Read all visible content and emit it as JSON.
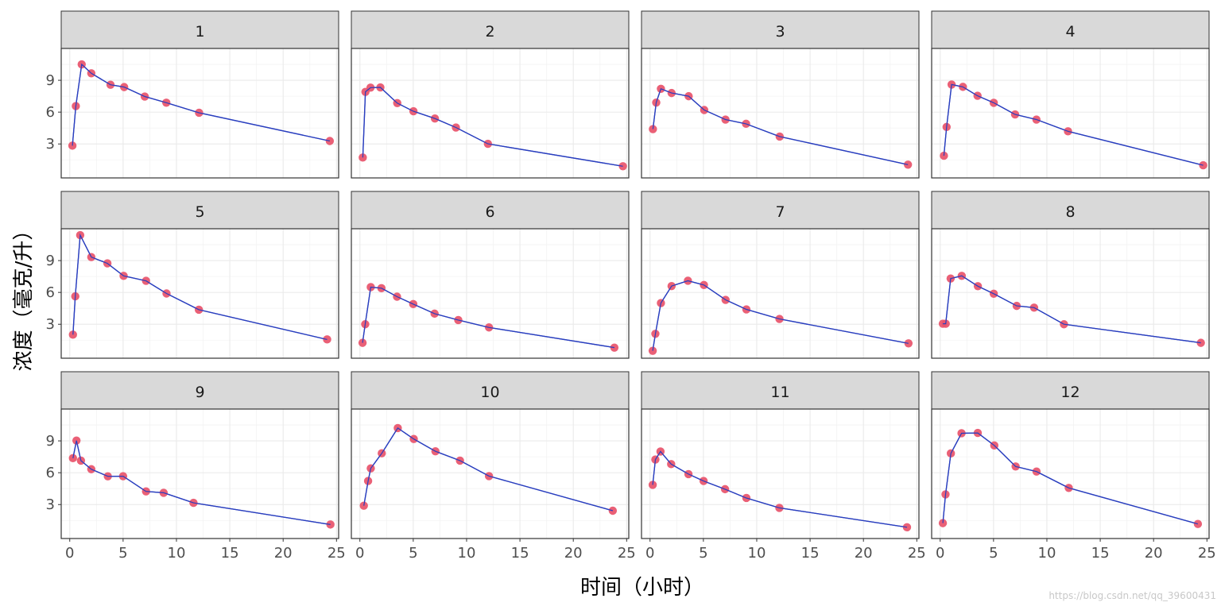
{
  "chart_data": {
    "type": "line",
    "facet_layout": "3 rows x 4 columns",
    "xlabel": "时间（小时）",
    "ylabel": "浓度（毫克/升）",
    "xlim": [
      -0.8,
      25.2
    ],
    "ylim": [
      -0.2,
      12.0
    ],
    "x_ticks": [
      0,
      5,
      10,
      15,
      20,
      25
    ],
    "y_ticks": [
      3,
      6,
      9
    ],
    "grid": true,
    "colors": {
      "line": "#2a3fbf",
      "point": "#e8536a",
      "strip": "#d9d9d9",
      "panel_border": "#333333",
      "grid": "#ebebeb"
    },
    "panels": [
      {
        "label": "1",
        "x": [
          0.25,
          0.57,
          1.12,
          2.02,
          3.82,
          5.1,
          7.03,
          9.05,
          12.12,
          24.37
        ],
        "y": [
          2.84,
          6.57,
          10.5,
          9.66,
          8.58,
          8.36,
          7.47,
          6.89,
          5.94,
          3.28
        ]
      },
      {
        "label": "2",
        "x": [
          0.27,
          0.52,
          1.0,
          1.92,
          3.5,
          5.02,
          7.03,
          9.0,
          12.0,
          24.65
        ],
        "y": [
          1.72,
          7.91,
          8.31,
          8.33,
          6.85,
          6.08,
          5.4,
          4.55,
          3.01,
          0.9
        ]
      },
      {
        "label": "3",
        "x": [
          0.27,
          0.58,
          1.02,
          2.02,
          3.62,
          5.08,
          7.07,
          9.0,
          12.15,
          24.17
        ],
        "y": [
          4.4,
          6.9,
          8.2,
          7.8,
          7.5,
          6.2,
          5.3,
          4.9,
          3.7,
          1.05
        ]
      },
      {
        "label": "4",
        "x": [
          0.35,
          0.6,
          1.07,
          2.13,
          3.5,
          5.02,
          7.02,
          9.02,
          11.98,
          24.65
        ],
        "y": [
          1.89,
          4.6,
          8.6,
          8.38,
          7.54,
          6.88,
          5.78,
          5.3,
          4.19,
          0.99
        ]
      },
      {
        "label": "5",
        "x": [
          0.3,
          0.52,
          0.98,
          2.02,
          3.53,
          5.05,
          7.15,
          9.07,
          12.1,
          24.12
        ],
        "y": [
          2.02,
          5.63,
          11.4,
          9.33,
          8.74,
          7.56,
          7.09,
          5.9,
          4.37,
          1.57
        ]
      },
      {
        "label": "6",
        "x": [
          0.25,
          0.5,
          1.02,
          2.02,
          3.48,
          5.0,
          7.0,
          9.22,
          12.1,
          23.85
        ],
        "y": [
          1.25,
          3.0,
          6.5,
          6.4,
          5.6,
          4.9,
          4.0,
          3.4,
          2.7,
          0.8
        ]
      },
      {
        "label": "7",
        "x": [
          0.25,
          0.5,
          1.02,
          2.02,
          3.55,
          5.05,
          7.08,
          9.03,
          12.13,
          24.22
        ],
        "y": [
          0.5,
          2.1,
          5.0,
          6.6,
          7.1,
          6.7,
          5.3,
          4.4,
          3.5,
          1.2
        ]
      },
      {
        "label": "8",
        "x": [
          0.25,
          0.52,
          0.98,
          2.02,
          3.53,
          5.02,
          7.17,
          8.8,
          11.6,
          24.43
        ],
        "y": [
          3.05,
          3.05,
          7.31,
          7.56,
          6.59,
          5.88,
          4.73,
          4.57,
          3.0,
          1.25
        ]
      },
      {
        "label": "9",
        "x": [
          0.3,
          0.63,
          1.05,
          2.02,
          3.57,
          5.0,
          7.15,
          8.8,
          11.6,
          24.43
        ],
        "y": [
          7.37,
          9.03,
          7.14,
          6.33,
          5.66,
          5.67,
          4.24,
          4.11,
          3.16,
          1.12
        ]
      },
      {
        "label": "10",
        "x": [
          0.37,
          0.77,
          1.02,
          2.05,
          3.55,
          5.05,
          7.08,
          9.38,
          12.1,
          23.7
        ],
        "y": [
          2.89,
          5.22,
          6.41,
          7.83,
          10.21,
          9.18,
          8.02,
          7.14,
          5.68,
          2.42
        ]
      },
      {
        "label": "11",
        "x": [
          0.25,
          0.5,
          0.98,
          1.98,
          3.6,
          5.02,
          7.03,
          9.03,
          12.12,
          24.08
        ],
        "y": [
          4.86,
          7.24,
          8.0,
          6.81,
          5.87,
          5.22,
          4.45,
          3.62,
          2.69,
          0.86
        ]
      },
      {
        "label": "12",
        "x": [
          0.25,
          0.5,
          1.0,
          2.0,
          3.52,
          5.07,
          7.07,
          9.03,
          12.05,
          24.15
        ],
        "y": [
          1.25,
          3.96,
          7.82,
          9.72,
          9.75,
          8.57,
          6.59,
          6.11,
          4.57,
          1.17
        ]
      }
    ]
  },
  "watermark_text": "https://blog.csdn.net/qq_39600431"
}
